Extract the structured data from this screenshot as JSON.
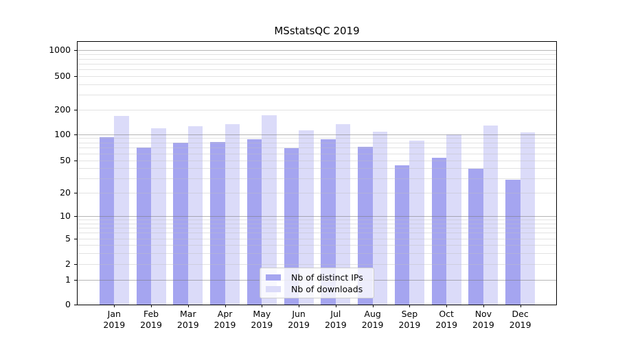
{
  "chart_data": {
    "type": "bar",
    "title": "MSstatsQC 2019",
    "x": [
      {
        "month": "Jan",
        "year": "2019"
      },
      {
        "month": "Feb",
        "year": "2019"
      },
      {
        "month": "Mar",
        "year": "2019"
      },
      {
        "month": "Apr",
        "year": "2019"
      },
      {
        "month": "May",
        "year": "2019"
      },
      {
        "month": "Jun",
        "year": "2019"
      },
      {
        "month": "Jul",
        "year": "2019"
      },
      {
        "month": "Aug",
        "year": "2019"
      },
      {
        "month": "Sep",
        "year": "2019"
      },
      {
        "month": "Oct",
        "year": "2019"
      },
      {
        "month": "Nov",
        "year": "2019"
      },
      {
        "month": "Dec",
        "year": "2019"
      }
    ],
    "series": [
      {
        "name": "Nb of distinct IPs",
        "key": "distinct-ips",
        "color": "#a5a5f0",
        "values": [
          92,
          70,
          80,
          82,
          87,
          69,
          88,
          71,
          43,
          53,
          39,
          29
        ]
      },
      {
        "name": "Nb of downloads",
        "key": "downloads",
        "color": "#dbdbf9",
        "values": [
          169,
          118,
          125,
          134,
          171,
          111,
          134,
          107,
          85,
          99,
          127,
          105
        ]
      }
    ],
    "y_ticks": [
      0,
      1,
      2,
      5,
      10,
      20,
      50,
      100,
      200,
      500,
      1000
    ],
    "y_scale": "symlog",
    "ylim": [
      0,
      1000
    ],
    "grid": "on",
    "grid_above_bars": true,
    "legend_position": "lower center inside plot",
    "colors": {
      "major_gridline": "#b6b6b6",
      "minor_gridline": "#e9e9e9",
      "axis": "#000000",
      "background": "#ffffff"
    }
  }
}
